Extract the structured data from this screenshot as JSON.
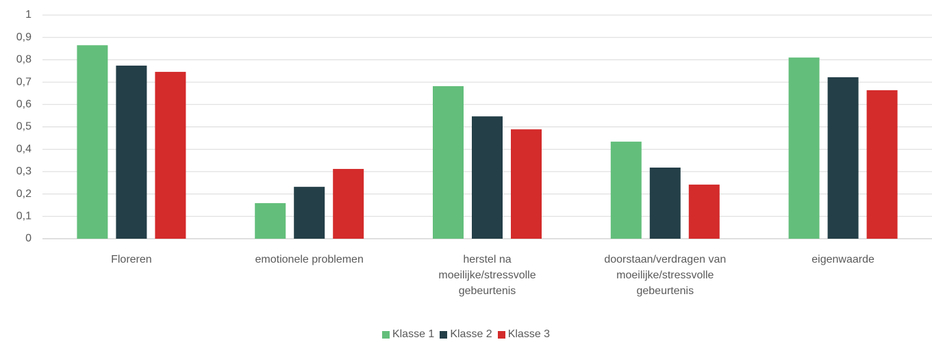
{
  "chart_data": {
    "type": "bar",
    "categories": [
      "Floreren",
      "emotionele problemen",
      "herstel na moeilijke/stressvolle gebeurtenis",
      "doorstaan/verdragen van moeilijke/stressvolle gebeurtenis",
      "eigenwaarde"
    ],
    "series": [
      {
        "name": "Klasse 1",
        "color": "#63be7b",
        "values": [
          0.865,
          0.159,
          0.682,
          0.434,
          0.81
        ]
      },
      {
        "name": "Klasse 2",
        "color": "#243f48",
        "values": [
          0.774,
          0.232,
          0.547,
          0.318,
          0.722
        ]
      },
      {
        "name": "Klasse 3",
        "color": "#d42b2b",
        "values": [
          0.746,
          0.312,
          0.489,
          0.242,
          0.664
        ]
      }
    ],
    "ylim": [
      0,
      1
    ],
    "yticks": [
      0,
      {
        "value": 0.1,
        "label": "0,1"
      },
      {
        "value": 0.2,
        "label": "0,2"
      },
      {
        "value": 0.3,
        "label": "0,3"
      },
      {
        "value": 0.4,
        "label": "0,4"
      },
      {
        "value": 0.5,
        "label": "0,5"
      },
      {
        "value": 0.6,
        "label": "0,6"
      },
      {
        "value": 0.7,
        "label": "0,7"
      },
      {
        "value": 0.8,
        "label": "0,8"
      },
      {
        "value": 0.9,
        "label": "0,9"
      },
      1
    ],
    "grid": true,
    "legend": "bottom"
  }
}
